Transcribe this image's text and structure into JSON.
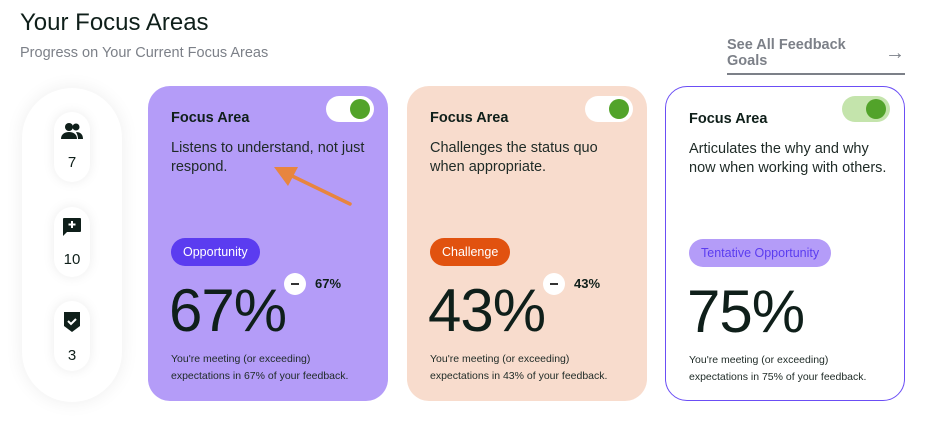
{
  "header": {
    "title": "Your Focus Areas",
    "subtitle": "Progress on Your Current Focus Areas",
    "see_all": "See All Feedback Goals"
  },
  "sidebar": {
    "stats": [
      {
        "icon": "people-icon",
        "value": "7"
      },
      {
        "icon": "add-comment-icon",
        "value": "10"
      },
      {
        "icon": "shield-check-icon",
        "value": "3"
      }
    ]
  },
  "cards": [
    {
      "label": "Focus Area",
      "description": "Listens to understand, not just respond.",
      "badge": "Opportunity",
      "badge_color": "#5b3cf0",
      "percent": "67%",
      "change": "67%",
      "footer1": "You're meeting (or exceeding)",
      "footer2": "expectations in 67% of your feedback.",
      "toggle_on": true
    },
    {
      "label": "Focus Area",
      "description": "Challenges the status quo when appropriate.",
      "badge": "Challenge",
      "badge_color": "#e1520f",
      "percent": "43%",
      "change": "43%",
      "footer1": "You're meeting (or exceeding)",
      "footer2": "expectations in 43% of your feedback.",
      "toggle_on": true
    },
    {
      "label": "Focus Area",
      "description": "Articulates the why and why now when working with others.",
      "badge": "Tentative Opportunity",
      "badge_color": "#b49cf8",
      "percent": "75%",
      "footer1": "You're meeting (or exceeding)",
      "footer2": "expectations in 75% of your feedback.",
      "toggle_on": true
    }
  ],
  "annotation": {
    "arrow_color": "#e8853f"
  }
}
